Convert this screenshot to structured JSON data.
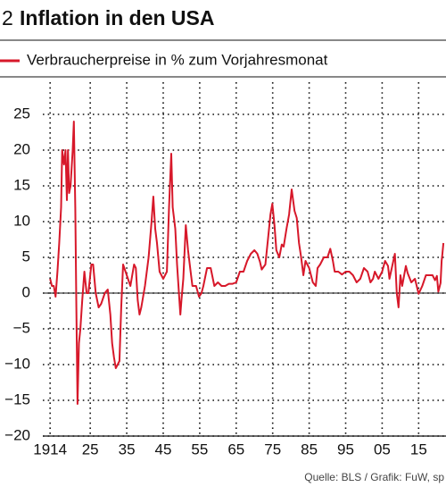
{
  "chart_number": "2",
  "chart_data": {
    "type": "line",
    "title": "Inflation in den USA",
    "source": "Quelle: BLS / Grafik: FuW, sp",
    "x": [
      1914,
      1914.5,
      1915,
      1915.5,
      1916,
      1916.5,
      1917,
      1917.3,
      1917.8,
      1918.2,
      1918.6,
      1918.9,
      1919.2,
      1919.6,
      1920.2,
      1920.5,
      1920.9,
      1921.2,
      1921.5,
      1921.9,
      1922.3,
      1922.8,
      1923.4,
      1924,
      1924.5,
      1925.3,
      1925.8,
      1926.5,
      1927.3,
      1928,
      1929,
      1929.8,
      1930.5,
      1931,
      1931.5,
      1932,
      1932.5,
      1933,
      1933.5,
      1934,
      1935,
      1936,
      1937,
      1937.5,
      1938,
      1938.5,
      1939,
      1940,
      1941,
      1941.8,
      1942.3,
      1942.8,
      1943.3,
      1944,
      1945,
      1946,
      1946.6,
      1947.2,
      1947.6,
      1948.3,
      1948.8,
      1949.3,
      1949.7,
      1950,
      1950.5,
      1951.2,
      1951.8,
      1952.5,
      1953,
      1954,
      1954.8,
      1955.5,
      1956,
      1957,
      1958,
      1959,
      1960,
      1961,
      1962,
      1963,
      1964,
      1965,
      1966,
      1967,
      1968,
      1969,
      1970,
      1970.8,
      1971.5,
      1972,
      1973,
      1973.8,
      1974.4,
      1974.9,
      1975.5,
      1976,
      1976.8,
      1977.5,
      1978,
      1978.8,
      1979.5,
      1980.2,
      1980.6,
      1981,
      1981.6,
      1982.2,
      1982.8,
      1983.4,
      1984,
      1985,
      1986,
      1986.8,
      1987.3,
      1988,
      1989,
      1990,
      1990.8,
      1991.5,
      1992,
      1993,
      1994,
      1995,
      1996,
      1997,
      1998,
      1999,
      2000,
      2001,
      2001.8,
      2002.5,
      2003,
      2004,
      2005,
      2005.8,
      2006.6,
      2007,
      2008.5,
      2009,
      2009.5,
      2010,
      2010.5,
      2011.5,
      2012,
      2013,
      2014,
      2015,
      2016,
      2017,
      2018,
      2018.8,
      2019.5,
      2020,
      2020.4,
      2021,
      2021.3,
      2021.5,
      2021.8
    ],
    "series": [
      {
        "name": "Verbraucherpreise in % zum Vorjahresmonat",
        "color": "#d7182a",
        "values": [
          2,
          1,
          1,
          -0.5,
          3,
          7,
          12,
          20,
          18,
          20,
          13,
          20,
          14,
          15,
          20,
          24,
          12,
          -2,
          -15.5,
          -7,
          -5,
          -1,
          3,
          0,
          0,
          4,
          4,
          0,
          -2,
          -1.5,
          0,
          0.5,
          -3,
          -7,
          -9,
          -10.5,
          -10,
          -9.5,
          -2,
          4,
          2.5,
          1,
          4,
          3.5,
          -1,
          -3,
          -2,
          1,
          5,
          10,
          13.5,
          9,
          7,
          3,
          2,
          3,
          12,
          19.5,
          12,
          9,
          4,
          0,
          -3,
          -1,
          2,
          9.5,
          6,
          3,
          1,
          1,
          -0.5,
          0,
          1,
          3.5,
          3.5,
          1,
          1.5,
          1,
          1,
          1.3,
          1.3,
          1.5,
          3,
          3,
          4.5,
          5.5,
          6,
          5.5,
          4.4,
          3.3,
          4,
          8,
          11,
          12.5,
          9.5,
          6,
          5,
          6.8,
          6.5,
          9,
          11,
          14.5,
          13,
          11.5,
          10.5,
          7,
          5,
          2.5,
          4.5,
          3.5,
          1.5,
          1,
          3.5,
          4,
          5,
          5,
          6.2,
          4.5,
          3,
          3,
          2.6,
          3,
          3,
          2.5,
          1.5,
          2,
          3.5,
          3,
          1.5,
          2,
          3,
          2,
          3,
          4.5,
          3.8,
          2,
          5.5,
          0,
          -2,
          2.5,
          1,
          3.8,
          2.8,
          1.5,
          2,
          -0.1,
          1,
          2.5,
          2.5,
          2.5,
          1.8,
          2.4,
          0.2,
          1.4,
          4.5,
          5.4,
          7
        ]
      }
    ],
    "xlim": [
      1912,
      2022.5
    ],
    "xticks": [
      1914,
      {
        "value": 1925,
        "label": "25"
      },
      {
        "value": 1935,
        "label": "35"
      },
      {
        "value": 1945,
        "label": "45"
      },
      {
        "value": 1955,
        "label": "55"
      },
      {
        "value": 1965,
        "label": "65"
      },
      {
        "value": 1975,
        "label": "75"
      },
      {
        "value": 1985,
        "label": "85"
      },
      {
        "value": 1995,
        "label": "95"
      },
      {
        "value": 2005,
        "label": "05"
      },
      {
        "value": 2015,
        "label": "15"
      }
    ],
    "ylim": [
      -20,
      29.5
    ],
    "yticks": [
      {
        "value": -20,
        "label": "−20"
      },
      {
        "value": -15,
        "label": "−15"
      },
      {
        "value": -10,
        "label": "−10"
      },
      {
        "value": -5,
        "label": "−5"
      },
      0,
      5,
      10,
      15,
      20,
      25
    ],
    "grid": true
  }
}
